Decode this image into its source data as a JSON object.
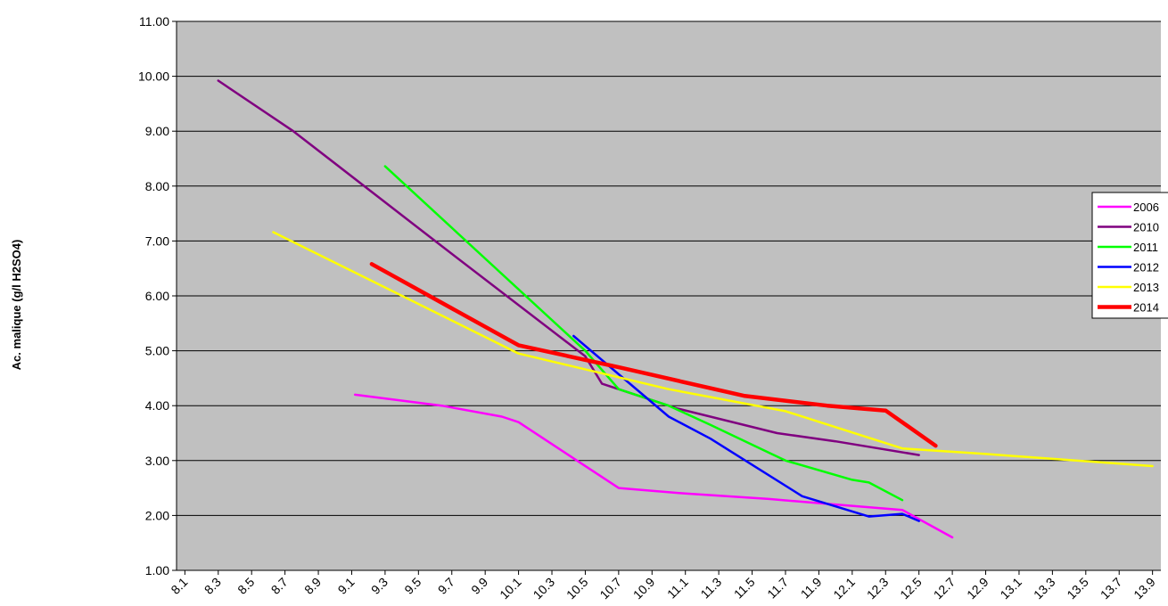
{
  "chart_data": {
    "type": "line",
    "title": "",
    "xlabel": "",
    "ylabel": "Ac. malique (g/l H2SO4)",
    "x_ticks": [
      "8.1",
      "8.3",
      "8.5",
      "8.7",
      "8.9",
      "9.1",
      "9.3",
      "9.5",
      "9.7",
      "9.9",
      "10.1",
      "10.3",
      "10.5",
      "10.7",
      "10.9",
      "11.1",
      "11.3",
      "11.5",
      "11.7",
      "11.9",
      "12.1",
      "12.3",
      "12.5",
      "12.7",
      "12.9",
      "13.1",
      "13.3",
      "13.5",
      "13.7",
      "13.9"
    ],
    "y_ticks": [
      "1.00",
      "2.00",
      "3.00",
      "4.00",
      "5.00",
      "6.00",
      "7.00",
      "8.00",
      "9.00",
      "10.00",
      "11.00"
    ],
    "xlim": [
      8.05,
      13.95
    ],
    "ylim": [
      1,
      11
    ],
    "grid": "horizontal",
    "plot_background": "#c0c0c0",
    "legend_position": "right",
    "series": [
      {
        "name": "2006",
        "color": "#ff00ff",
        "width": 2.5,
        "points": [
          [
            9.12,
            4.2
          ],
          [
            9.64,
            4.0
          ],
          [
            10.0,
            3.8
          ],
          [
            10.1,
            3.7
          ],
          [
            10.7,
            2.5
          ],
          [
            11.1,
            2.4
          ],
          [
            11.6,
            2.3
          ],
          [
            12.0,
            2.2
          ],
          [
            12.4,
            2.1
          ],
          [
            12.7,
            1.6
          ]
        ]
      },
      {
        "name": "2010",
        "color": "#800080",
        "width": 2.5,
        "points": [
          [
            8.3,
            9.92
          ],
          [
            8.75,
            9.0
          ],
          [
            9.6,
            7.0
          ],
          [
            10.5,
            4.9
          ],
          [
            10.6,
            4.4
          ],
          [
            11.05,
            3.95
          ],
          [
            11.65,
            3.5
          ],
          [
            12.0,
            3.35
          ],
          [
            12.5,
            3.1
          ]
        ]
      },
      {
        "name": "2011",
        "color": "#00ff00",
        "width": 2.5,
        "points": [
          [
            9.3,
            8.36
          ],
          [
            10.5,
            5.0
          ],
          [
            10.7,
            4.3
          ],
          [
            11.0,
            4.0
          ],
          [
            11.25,
            3.65
          ],
          [
            11.7,
            3.0
          ],
          [
            12.1,
            2.65
          ],
          [
            12.2,
            2.6
          ],
          [
            12.4,
            2.28
          ]
        ]
      },
      {
        "name": "2012",
        "color": "#0000ff",
        "width": 2.5,
        "points": [
          [
            10.43,
            5.27
          ],
          [
            11.0,
            3.8
          ],
          [
            11.25,
            3.4
          ],
          [
            11.8,
            2.35
          ],
          [
            12.2,
            1.98
          ],
          [
            12.4,
            2.03
          ],
          [
            12.5,
            1.9
          ]
        ]
      },
      {
        "name": "2013",
        "color": "#ffff00",
        "width": 2.5,
        "points": [
          [
            8.63,
            7.16
          ],
          [
            10.1,
            4.95
          ],
          [
            11.0,
            4.3
          ],
          [
            11.7,
            3.9
          ],
          [
            12.4,
            3.22
          ],
          [
            12.9,
            3.12
          ],
          [
            13.9,
            2.9
          ]
        ]
      },
      {
        "name": "2014",
        "color": "#ff0000",
        "width": 4.5,
        "points": [
          [
            9.22,
            6.58
          ],
          [
            10.1,
            5.1
          ],
          [
            10.7,
            4.7
          ],
          [
            11.45,
            4.18
          ],
          [
            11.95,
            4.0
          ],
          [
            12.3,
            3.91
          ],
          [
            12.6,
            3.27
          ]
        ]
      }
    ]
  }
}
